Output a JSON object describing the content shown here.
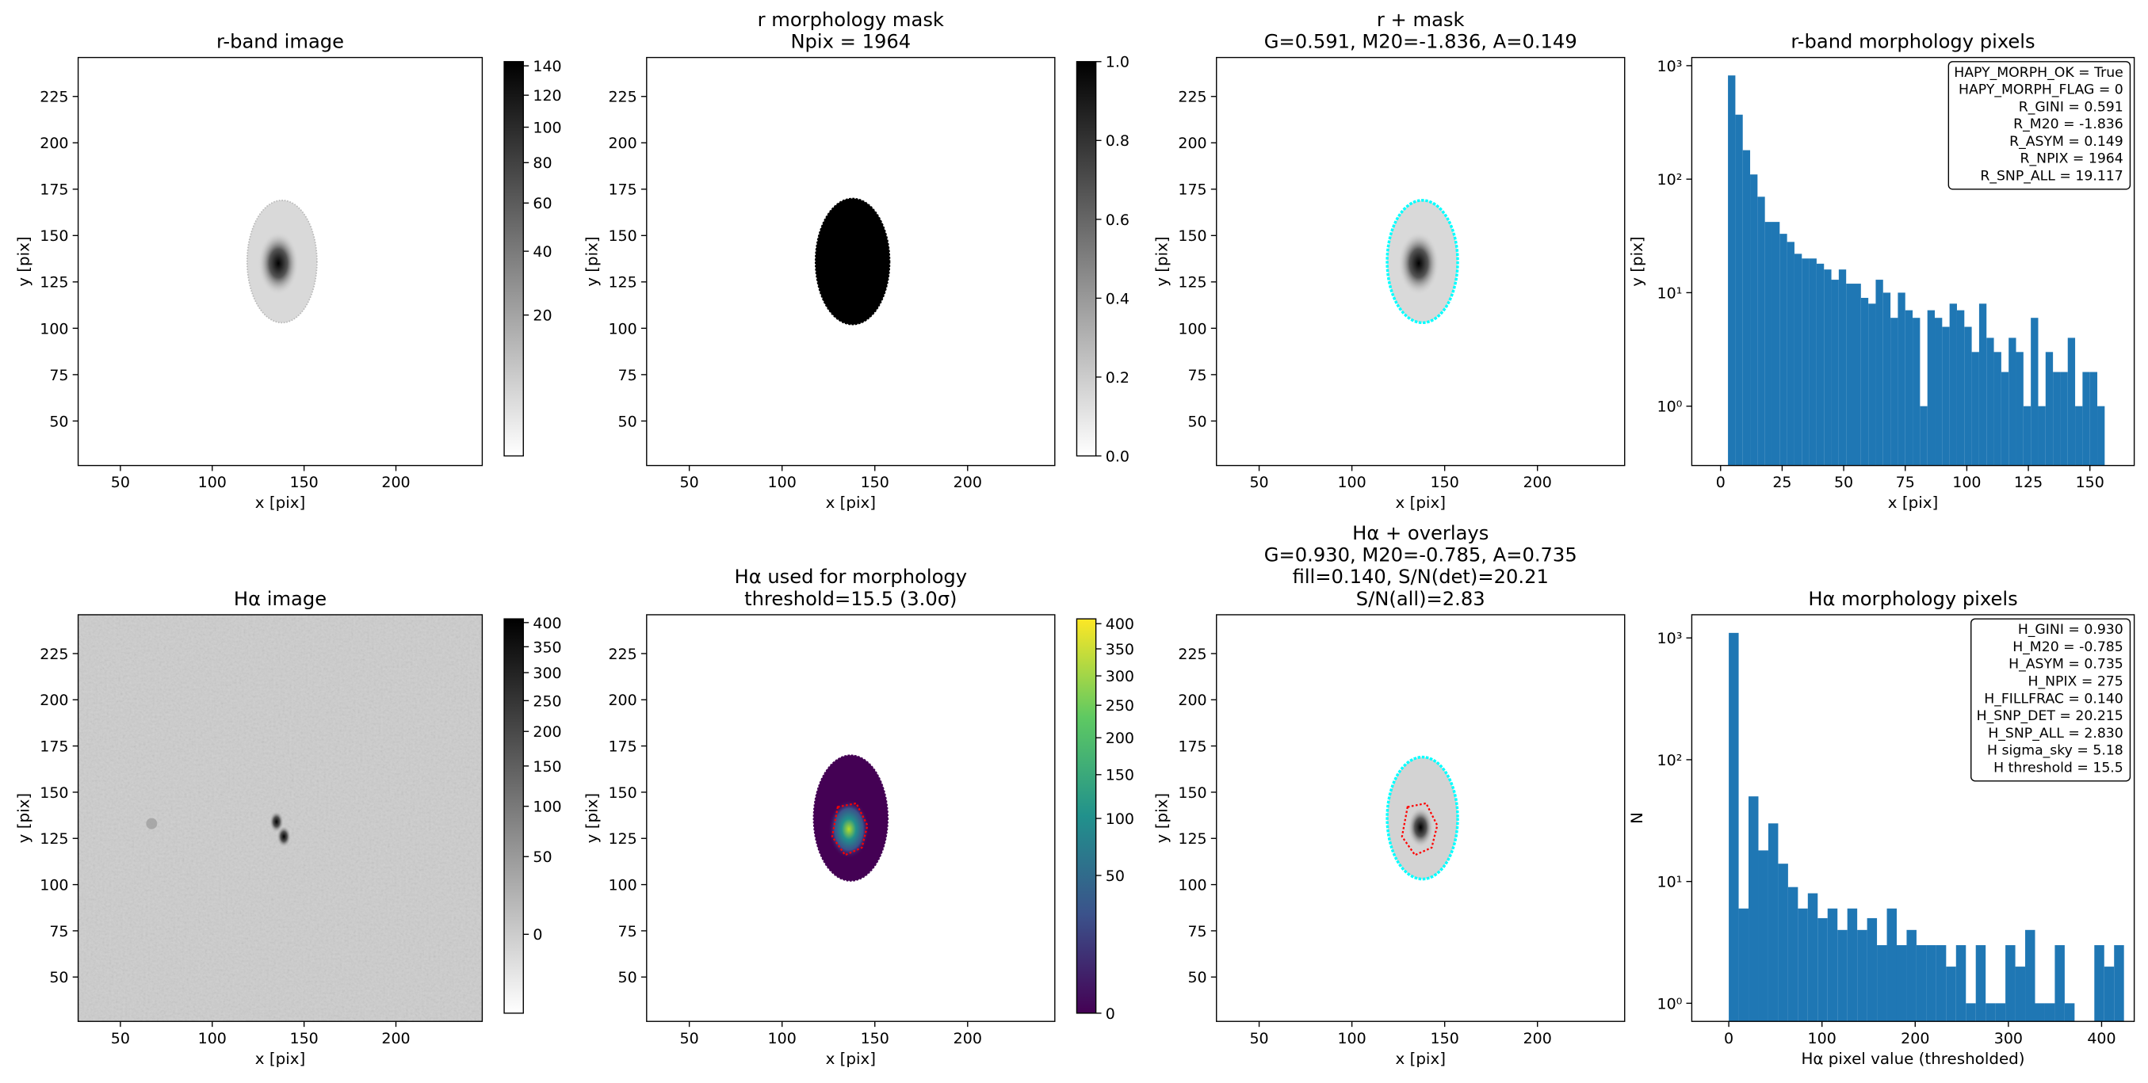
{
  "chart_data": [
    {
      "type": "image",
      "title": [
        "r-band image"
      ],
      "xlabel": "x [pix]",
      "ylabel": "y [pix]",
      "xlim": [
        27,
        247
      ],
      "ylim": [
        26,
        246
      ],
      "xticks": [
        50,
        100,
        150,
        200
      ],
      "yticks": [
        50,
        75,
        100,
        125,
        150,
        175,
        200,
        225
      ],
      "colorbar": {
        "cmap": "gray_r",
        "stretch": "sqrt",
        "clim": [
          2,
          143
        ],
        "ticks": [
          20,
          40,
          60,
          80,
          100,
          120,
          140
        ]
      }
    },
    {
      "type": "image",
      "title": [
        "r morphology mask",
        "Npix = 1964"
      ],
      "xlabel": "x [pix]",
      "ylabel": "y [pix]",
      "xlim": [
        27,
        247
      ],
      "ylim": [
        26,
        246
      ],
      "xticks": [
        50,
        100,
        150,
        200
      ],
      "yticks": [
        50,
        75,
        100,
        125,
        150,
        175,
        200,
        225
      ],
      "colorbar": {
        "cmap": "gray_r",
        "stretch": "linear",
        "clim": [
          0,
          1
        ],
        "ticks": [
          {
            "value": 0,
            "label": "0.0"
          },
          0.2,
          0.4,
          0.6,
          0.8,
          {
            "value": 1,
            "label": "1.0"
          }
        ]
      }
    },
    {
      "type": "image",
      "title": [
        "r + mask",
        "G=0.591, M20=-1.836, A=0.149"
      ],
      "xlabel": "x [pix]",
      "ylabel": "y [pix]",
      "xlim": [
        27,
        247
      ],
      "ylim": [
        26,
        246
      ],
      "xticks": [
        50,
        100,
        150,
        200
      ],
      "yticks": [
        50,
        75,
        100,
        125,
        150,
        175,
        200,
        225
      ]
    },
    {
      "type": "histogram",
      "title": [
        "r-band morphology pixels"
      ],
      "xlabel": "x [pix]",
      "ylabel": "y [pix]",
      "log_y": true,
      "color": "#1f77b4",
      "xlim": [
        -11.7,
        168
      ],
      "ylim": [
        0.3,
        1180
      ],
      "xticks": [
        0,
        25,
        50,
        75,
        100,
        125,
        150
      ],
      "yticks": [
        {
          "value": 1,
          "label": "10⁰"
        },
        {
          "value": 10,
          "label": "10¹"
        },
        {
          "value": 100,
          "label": "10²"
        },
        {
          "value": 1000,
          "label": "10³"
        }
      ],
      "bins": [
        3,
        6,
        9,
        12,
        15,
        18,
        21,
        24,
        27,
        30,
        33,
        36,
        39,
        42,
        45,
        48,
        51,
        54,
        57,
        60,
        63,
        66,
        69,
        72,
        75,
        78,
        81,
        84,
        87,
        90,
        93,
        96,
        99,
        102,
        105,
        108,
        111,
        114,
        117,
        120,
        123,
        126,
        129,
        132,
        135,
        138,
        141,
        144,
        147,
        150,
        153,
        156
      ],
      "values": [
        820,
        370,
        180,
        110,
        70,
        42,
        42,
        33,
        28,
        22,
        20,
        20,
        18,
        16,
        13,
        16,
        12,
        12,
        9,
        8,
        13,
        10,
        6,
        10,
        7,
        6,
        1,
        7,
        6,
        5,
        8,
        7,
        5,
        3,
        8,
        4,
        3,
        2,
        4,
        3,
        1,
        6,
        1,
        3,
        2,
        2,
        4,
        1,
        2,
        2,
        1
      ],
      "stats": [
        "HAPY_MORPH_OK = True",
        "HAPY_MORPH_FLAG = 0",
        "R_GINI = 0.591",
        "R_M20 = -1.836",
        "R_ASYM = 0.149",
        "R_NPIX = 1964",
        "R_SNP_ALL = 19.117"
      ]
    },
    {
      "type": "image",
      "title": [
        "Hα image"
      ],
      "xlabel": "x [pix]",
      "ylabel": "y [pix]",
      "xlim": [
        27,
        247
      ],
      "ylim": [
        26,
        246
      ],
      "xticks": [
        50,
        100,
        150,
        200
      ],
      "yticks": [
        50,
        75,
        100,
        125,
        150,
        175,
        200,
        225
      ],
      "colorbar": {
        "cmap": "gray_r",
        "stretch": "sqrt",
        "clim": [
          -17,
          408
        ],
        "ticks": [
          0,
          50,
          100,
          150,
          200,
          250,
          300,
          350,
          400
        ]
      }
    },
    {
      "type": "image",
      "title": [
        "Hα used for morphology",
        "threshold=15.5 (3.0σ)"
      ],
      "xlabel": "x [pix]",
      "ylabel": "y [pix]",
      "xlim": [
        27,
        247
      ],
      "ylim": [
        26,
        246
      ],
      "xticks": [
        50,
        100,
        150,
        200
      ],
      "yticks": [
        50,
        75,
        100,
        125,
        150,
        175,
        200,
        225
      ],
      "colorbar": {
        "cmap": "viridis",
        "stretch": "sqrt",
        "clim": [
          0,
          410
        ],
        "ticks": [
          0,
          50,
          100,
          150,
          200,
          250,
          300,
          350,
          400
        ]
      }
    },
    {
      "type": "image",
      "title": [
        "Hα + overlays",
        "G=0.930, M20=-0.785, A=0.735",
        "fill=0.140, S/N(det)=20.21",
        "S/N(all)=2.83"
      ],
      "xlabel": "x [pix]",
      "ylabel": "y [pix]",
      "xlim": [
        27,
        247
      ],
      "ylim": [
        26,
        246
      ],
      "xticks": [
        50,
        100,
        150,
        200
      ],
      "yticks": [
        50,
        75,
        100,
        125,
        150,
        175,
        200,
        225
      ]
    },
    {
      "type": "histogram",
      "title": [
        "Hα morphology pixels"
      ],
      "xlabel": "Hα pixel value (thresholded)",
      "ylabel": "N",
      "log_y": true,
      "color": "#1f77b4",
      "xlim": [
        -39.7,
        435
      ],
      "ylim": [
        0.71,
        1550
      ],
      "xticks": [
        0,
        100,
        200,
        300,
        400
      ],
      "yticks": [
        {
          "value": 1,
          "label": "10⁰"
        },
        {
          "value": 10,
          "label": "10¹"
        },
        {
          "value": 100,
          "label": "10²"
        },
        {
          "value": 1000,
          "label": "10³"
        }
      ],
      "bins": [
        0,
        10.6,
        21.2,
        31.8,
        42.4,
        53,
        63.6,
        74.2,
        84.8,
        95.4,
        106,
        116.6,
        127.2,
        137.8,
        148.4,
        159,
        169.6,
        180.2,
        190.8,
        201.4,
        212,
        222.6,
        233.2,
        243.8,
        254.4,
        265,
        275.6,
        286.2,
        296.8,
        307.4,
        318,
        328.6,
        339.2,
        349.8,
        360.4,
        371,
        381.6,
        392.2,
        402.8,
        413.4,
        424
      ],
      "values": [
        1100,
        6,
        50,
        18,
        30,
        14,
        9,
        6,
        8,
        5,
        6,
        4,
        6,
        4,
        5,
        3,
        6,
        3,
        4,
        3,
        3,
        3,
        2,
        3,
        1,
        3,
        1,
        1,
        3,
        2,
        4,
        1,
        1,
        3,
        1,
        0,
        0,
        3,
        2,
        3
      ],
      "stats": [
        "H_GINI = 0.930",
        "H_M20 = -0.785",
        "H_ASYM = 0.735",
        "H_NPIX = 275",
        "H_FILLFRAC = 0.140",
        "H_SNP_DET = 20.215",
        "H_SNP_ALL = 2.830",
        "H sigma_sky = 5.18",
        "H threshold = 15.5"
      ]
    }
  ]
}
